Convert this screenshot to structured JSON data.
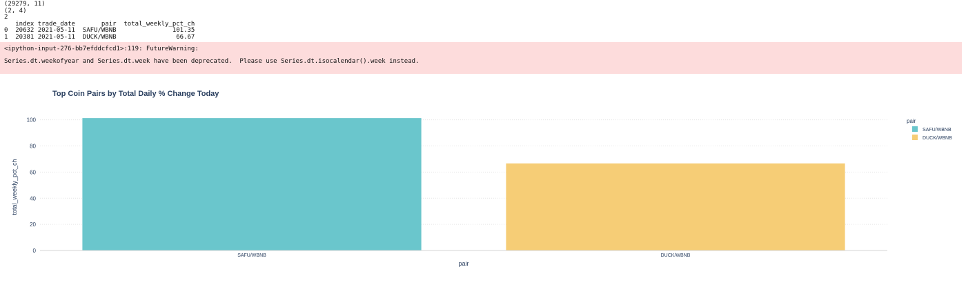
{
  "output": {
    "lines": [
      "(29279, 11)",
      "(2, 4)",
      "2",
      "   index trade_date       pair  total_weekly_pct_ch",
      "0  20632 2021-05-11  SAFU/WBNB               101.35",
      "1  20381 2021-05-11  DUCK/WBNB                66.67"
    ]
  },
  "warning": {
    "line1": "<ipython-input-276-bb7efddcfcd1>:119: FutureWarning:",
    "line2": "Series.dt.weekofyear and Series.dt.week have been deprecated.  Please use Series.dt.isocalendar().week instead."
  },
  "chart_data": {
    "type": "bar",
    "title": "Top Coin Pairs by Total Daily % Change Today",
    "xlabel": "pair",
    "ylabel": "total_weekly_pct_ch",
    "categories": [
      "SAFU/WBNB",
      "DUCK/WBNB"
    ],
    "values": [
      101.35,
      66.67
    ],
    "colors": [
      "#6ac6cc",
      "#f6cd76"
    ],
    "ylim": [
      0,
      106.7
    ],
    "yticks": [
      0,
      20,
      40,
      60,
      80,
      100
    ],
    "grid": true,
    "legend": {
      "title": "pair",
      "placement": "top-right",
      "items": [
        "SAFU/WBNB",
        "DUCK/WBNB"
      ]
    }
  }
}
